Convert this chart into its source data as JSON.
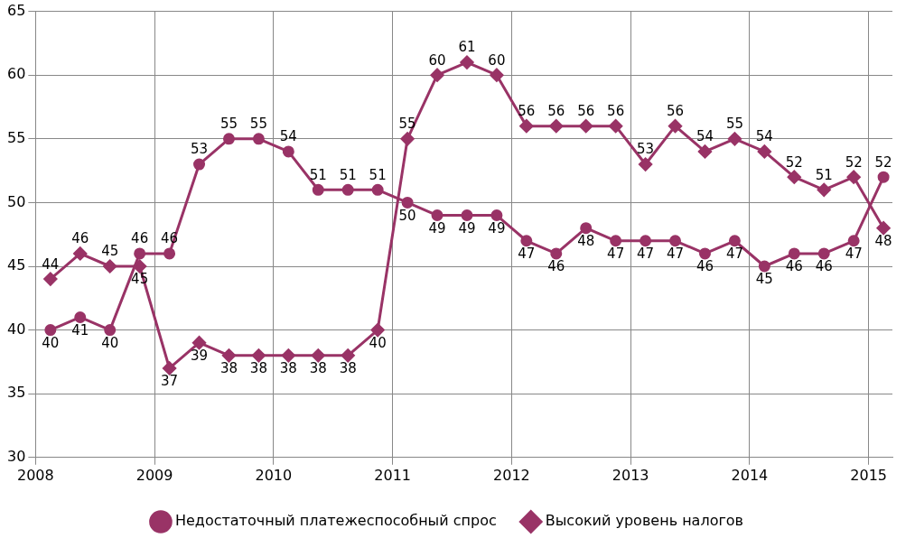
{
  "chart_data": {
    "type": "line",
    "x": [
      2008.125,
      2008.375,
      2008.625,
      2008.875,
      2009.125,
      2009.375,
      2009.625,
      2009.875,
      2010.125,
      2010.375,
      2010.625,
      2010.875,
      2011.125,
      2011.375,
      2011.625,
      2011.875,
      2012.125,
      2012.375,
      2012.625,
      2012.875,
      2013.125,
      2013.375,
      2013.625,
      2013.875,
      2014.125,
      2014.375,
      2014.625,
      2014.875,
      2015.125
    ],
    "series": [
      {
        "name": "Недостаточный платежеспособный спрос",
        "color": "#993366",
        "marker": "circle",
        "values": [
          40,
          41,
          40,
          46,
          46,
          53,
          55,
          55,
          54,
          51,
          51,
          51,
          50,
          49,
          49,
          49,
          47,
          46,
          48,
          47,
          47,
          47,
          46,
          47,
          45,
          46,
          46,
          47,
          52
        ]
      },
      {
        "name": "Высокий уровень налогов",
        "color": "#993366",
        "marker": "diamond",
        "values": [
          44,
          46,
          45,
          45,
          37,
          39,
          38,
          38,
          38,
          38,
          38,
          40,
          55,
          60,
          61,
          60,
          56,
          56,
          56,
          56,
          53,
          56,
          54,
          55,
          54,
          52,
          51,
          52,
          48
        ]
      }
    ],
    "xlim": [
      2008,
      2015.2
    ],
    "xticks": [
      2008,
      2009,
      2010,
      2011,
      2012,
      2013,
      2014,
      2015
    ],
    "ylim": [
      30,
      65
    ],
    "yticks": [
      30,
      35,
      40,
      45,
      50,
      55,
      60,
      65
    ],
    "grid": true,
    "legend": "bottom",
    "data_labels": true,
    "line_style": "solid"
  }
}
